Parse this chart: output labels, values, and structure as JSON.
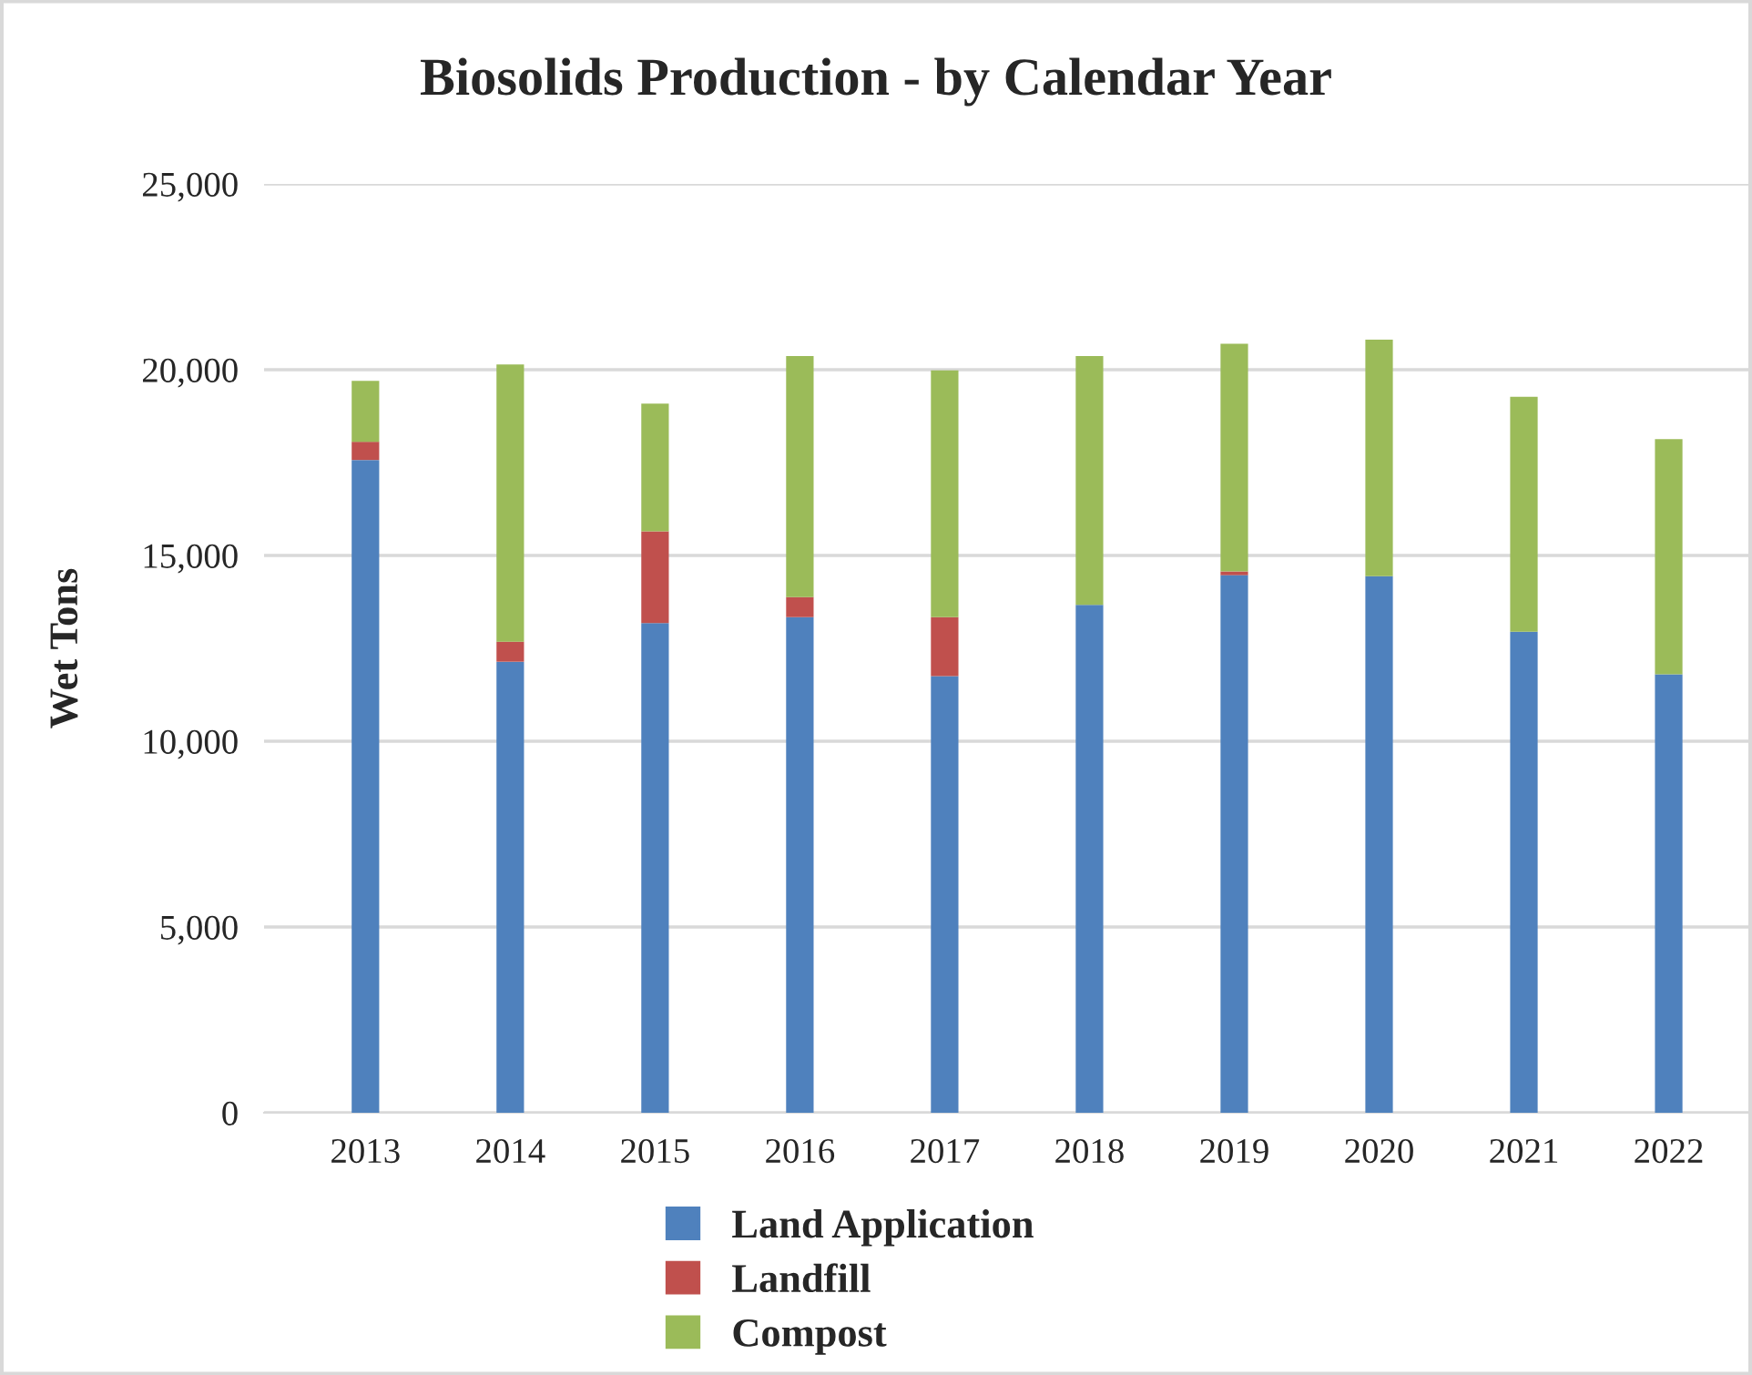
{
  "chart_data": {
    "type": "bar",
    "title": "Biosolids Production - by Calendar Year",
    "ylabel": "Wet Tons",
    "categories": [
      "2013",
      "2014",
      "2015",
      "2016",
      "2017",
      "2018",
      "2019",
      "2020",
      "2021",
      "2022"
    ],
    "stacked": true,
    "series": [
      {
        "name": "Land Application",
        "color": "#4f81bd",
        "values": [
          17570,
          12140,
          13180,
          13340,
          11750,
          13670,
          14470,
          14440,
          12950,
          11800
        ]
      },
      {
        "name": "Landfill",
        "color": "#c0504d",
        "values": [
          490,
          540,
          2470,
          540,
          1590,
          0,
          100,
          0,
          0,
          0
        ]
      },
      {
        "name": "Compost",
        "color": "#9bbb59",
        "values": [
          1640,
          7460,
          3440,
          6490,
          6640,
          6700,
          6130,
          6370,
          6320,
          6330
        ]
      }
    ],
    "ylim": [
      0,
      25000
    ],
    "yticks": [
      {
        "value": 0,
        "label": "0"
      },
      {
        "value": 5000,
        "label": "5,000"
      },
      {
        "value": 10000,
        "label": "10,000"
      },
      {
        "value": 15000,
        "label": "15,000"
      },
      {
        "value": 20000,
        "label": "20,000"
      },
      {
        "value": 25000,
        "label": "25,000"
      }
    ],
    "grid": "y",
    "legend": "bottom"
  }
}
